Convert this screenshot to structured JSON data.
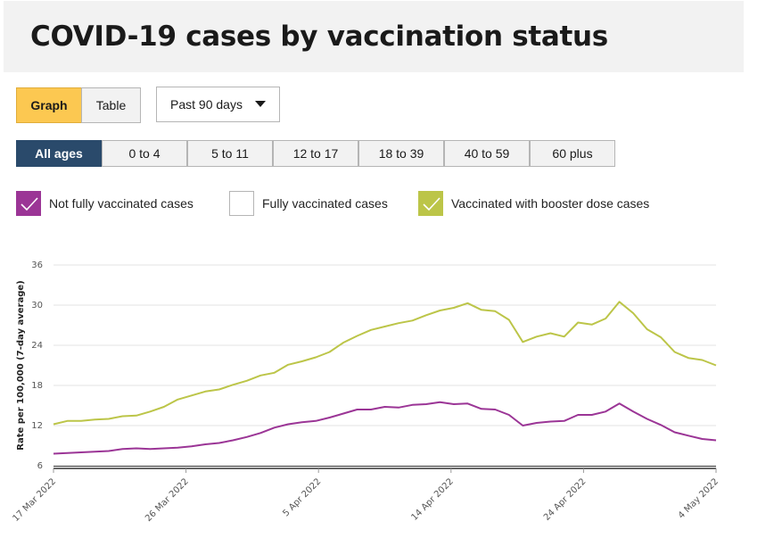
{
  "header": {
    "title": "COVID-19 cases by vaccination status"
  },
  "view_toggle": {
    "graph_label": "Graph",
    "table_label": "Table"
  },
  "period_select": {
    "value": "Past 90 days"
  },
  "age_tabs": [
    "All ages",
    "0 to 4",
    "5 to 11",
    "12 to 17",
    "18 to 39",
    "40 to 59",
    "60 plus"
  ],
  "legend": {
    "not_fully": {
      "label": "Not fully vaccinated cases",
      "checked": true,
      "color": "#9b3596"
    },
    "fully": {
      "label": "Fully vaccinated cases",
      "checked": false,
      "color": "#ffffff"
    },
    "booster": {
      "label": "Vaccinated with booster dose cases",
      "checked": true,
      "color": "#bcc548"
    }
  },
  "chart_data": {
    "type": "line",
    "ylabel": "Rate per 100,000 (7-day average)",
    "xlabel": "",
    "ylim": [
      6,
      36
    ],
    "yticks": [
      6,
      12,
      18,
      24,
      30,
      36
    ],
    "xticks": [
      "17 Mar 2022",
      "26 Mar 2022",
      "5 Apr 2022",
      "14 Apr 2022",
      "24 Apr 2022",
      "4 May 2022"
    ],
    "grid": true,
    "series": [
      {
        "name": "Vaccinated with booster dose cases",
        "color": "#bcc548",
        "values": [
          12.2,
          12.7,
          12.7,
          12.9,
          13.0,
          13.4,
          13.5,
          14.1,
          14.8,
          15.9,
          16.5,
          17.1,
          17.4,
          18.1,
          18.7,
          19.5,
          19.9,
          21.1,
          21.6,
          22.2,
          23.0,
          24.4,
          25.4,
          26.3,
          26.8,
          27.3,
          27.7,
          28.5,
          29.2,
          29.6,
          30.3,
          29.3,
          29.1,
          27.8,
          24.5,
          25.3,
          25.8,
          25.3,
          27.4,
          27.1,
          28.0,
          30.5,
          28.8,
          26.4,
          25.2,
          23.0,
          22.1,
          21.8,
          21.0
        ]
      },
      {
        "name": "Not fully vaccinated cases",
        "color": "#9b3596",
        "values": [
          7.8,
          7.9,
          8.0,
          8.1,
          8.2,
          8.5,
          8.6,
          8.5,
          8.6,
          8.7,
          8.9,
          9.2,
          9.4,
          9.8,
          10.3,
          10.9,
          11.7,
          12.2,
          12.5,
          12.7,
          13.2,
          13.8,
          14.4,
          14.4,
          14.8,
          14.7,
          15.1,
          15.2,
          15.5,
          15.2,
          15.3,
          14.5,
          14.4,
          13.6,
          12.0,
          12.4,
          12.6,
          12.7,
          13.6,
          13.6,
          14.1,
          15.3,
          14.1,
          13.0,
          12.1,
          11.0,
          10.5,
          10.0,
          9.8
        ]
      }
    ]
  }
}
